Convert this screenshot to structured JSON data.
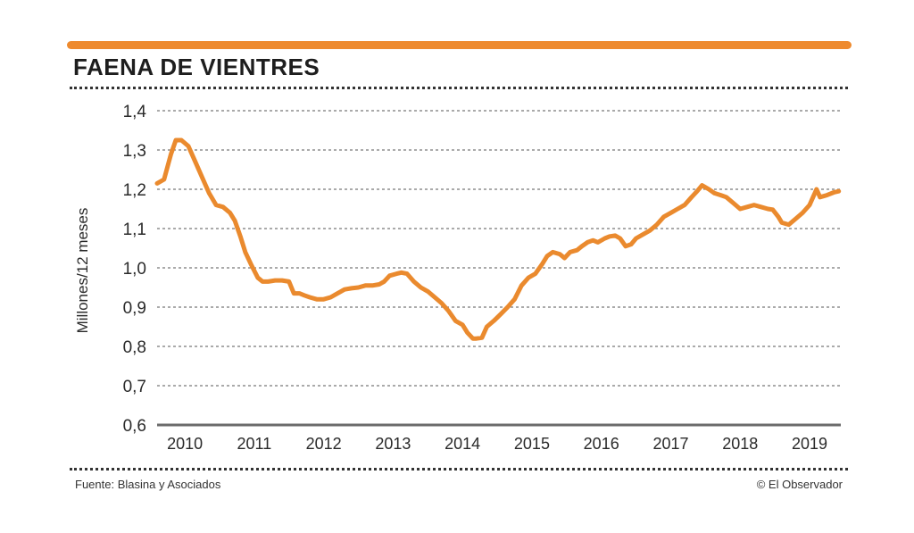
{
  "title": "FAENA DE VIENTRES",
  "source": "Fuente: Blasina y Asociados",
  "credit": "© El Observador",
  "colors": {
    "accent": "#ee8a2e",
    "line": "#ea8a2e",
    "grid": "#777777",
    "axis": "#6b6b6b"
  },
  "chart_data": {
    "type": "line",
    "title": "FAENA DE VIENTRES",
    "xlabel": "",
    "ylabel": "Millones/12 meses",
    "ylim": [
      0.6,
      1.4
    ],
    "xlim": [
      2009.6,
      2019.45
    ],
    "yticks": [
      0.6,
      0.7,
      0.8,
      0.9,
      1.0,
      1.1,
      1.2,
      1.3,
      1.4
    ],
    "ytick_labels": [
      "0,6",
      "0,7",
      "0,8",
      "0,9",
      "1,0",
      "1,1",
      "1,2",
      "1,3",
      "1,4"
    ],
    "xticks": [
      2010,
      2011,
      2012,
      2013,
      2014,
      2015,
      2016,
      2017,
      2018,
      2019
    ],
    "xtick_labels": [
      "2010",
      "2011",
      "2012",
      "2013",
      "2014",
      "2015",
      "2016",
      "2017",
      "2018",
      "2019"
    ],
    "grid": "horizontal-dotted",
    "series": [
      {
        "name": "Faena de vientres",
        "x": [
          2009.6,
          2009.7,
          2009.8,
          2009.87,
          2009.95,
          2010.05,
          2010.15,
          2010.25,
          2010.35,
          2010.45,
          2010.55,
          2010.65,
          2010.72,
          2010.8,
          2010.87,
          2010.95,
          2011.05,
          2011.12,
          2011.2,
          2011.3,
          2011.4,
          2011.5,
          2011.57,
          2011.65,
          2011.72,
          2011.8,
          2011.9,
          2012.0,
          2012.1,
          2012.2,
          2012.3,
          2012.4,
          2012.5,
          2012.6,
          2012.7,
          2012.8,
          2012.87,
          2012.95,
          2013.05,
          2013.12,
          2013.2,
          2013.3,
          2013.4,
          2013.5,
          2013.6,
          2013.7,
          2013.8,
          2013.9,
          2014.0,
          2014.07,
          2014.15,
          2014.2,
          2014.28,
          2014.35,
          2014.45,
          2014.55,
          2014.65,
          2014.75,
          2014.85,
          2014.95,
          2015.05,
          2015.15,
          2015.22,
          2015.3,
          2015.4,
          2015.47,
          2015.55,
          2015.65,
          2015.72,
          2015.8,
          2015.88,
          2015.95,
          2016.05,
          2016.12,
          2016.2,
          2016.27,
          2016.35,
          2016.43,
          2016.5,
          2016.6,
          2016.7,
          2016.8,
          2016.9,
          2017.0,
          2017.1,
          2017.2,
          2017.3,
          2017.38,
          2017.45,
          2017.55,
          2017.63,
          2017.72,
          2017.8,
          2017.9,
          2018.0,
          2018.1,
          2018.2,
          2018.3,
          2018.4,
          2018.47,
          2018.55,
          2018.6,
          2018.7,
          2018.8,
          2018.9,
          2019.0,
          2019.05,
          2019.1,
          2019.15,
          2019.25,
          2019.35,
          2019.42
        ],
        "values": [
          1.215,
          1.225,
          1.29,
          1.325,
          1.325,
          1.31,
          1.27,
          1.23,
          1.19,
          1.16,
          1.155,
          1.14,
          1.12,
          1.08,
          1.04,
          1.01,
          0.975,
          0.965,
          0.965,
          0.968,
          0.968,
          0.965,
          0.935,
          0.935,
          0.93,
          0.925,
          0.92,
          0.92,
          0.925,
          0.935,
          0.945,
          0.948,
          0.95,
          0.955,
          0.955,
          0.958,
          0.965,
          0.98,
          0.985,
          0.988,
          0.985,
          0.965,
          0.95,
          0.94,
          0.925,
          0.91,
          0.89,
          0.865,
          0.855,
          0.835,
          0.82,
          0.82,
          0.822,
          0.85,
          0.865,
          0.882,
          0.9,
          0.92,
          0.955,
          0.975,
          0.985,
          1.01,
          1.03,
          1.04,
          1.035,
          1.025,
          1.04,
          1.045,
          1.055,
          1.065,
          1.07,
          1.065,
          1.075,
          1.08,
          1.082,
          1.075,
          1.055,
          1.06,
          1.075,
          1.085,
          1.095,
          1.11,
          1.13,
          1.14,
          1.15,
          1.16,
          1.18,
          1.195,
          1.21,
          1.2,
          1.19,
          1.185,
          1.18,
          1.165,
          1.15,
          1.155,
          1.16,
          1.155,
          1.15,
          1.148,
          1.13,
          1.115,
          1.11,
          1.125,
          1.14,
          1.16,
          1.18,
          1.2,
          1.18,
          1.185,
          1.192,
          1.195
        ]
      }
    ]
  }
}
